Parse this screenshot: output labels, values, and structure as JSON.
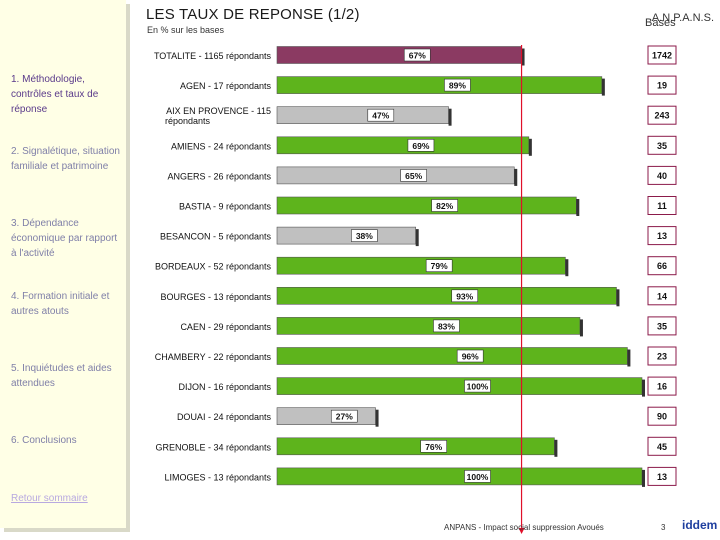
{
  "header": {
    "title": "LES TAUX DE REPONSE (1/2)",
    "subtitle": "En % sur les bases",
    "brand": "A.N.P.A.N.S.",
    "bases_label": "Bases"
  },
  "sidebar": {
    "items": [
      {
        "label": "1. Méthodologie, contrôles et taux de réponse"
      },
      {
        "label": "2. Signalétique, situation familiale et patrimoine"
      },
      {
        "label": "3. Dépendance économique par rapport à l'activité"
      },
      {
        "label": "4. Formation initiale et autres atouts"
      },
      {
        "label": "5. Inquiétudes et aides attendues"
      },
      {
        "label": "6. Conclusions"
      }
    ],
    "back_link": "Retour sommaire"
  },
  "footer": {
    "text": "ANPANS - Impact social suppression Avoués",
    "page": "3",
    "logo": "iddem"
  },
  "colors": {
    "total": "#8b3a62",
    "above": "#5eb41c",
    "below": "#c0c0c0",
    "reference_line": "#e0102a",
    "base_box_border": "#8b1a4a"
  },
  "chart_data": {
    "type": "bar",
    "orientation": "horizontal",
    "title": "LES TAUX DE REPONSE (1/2)",
    "unit": "%",
    "xlim": [
      0,
      100
    ],
    "reference_value": 67,
    "categories": [
      "TOTALITE - 1165 répondants",
      "AGEN - 17 répondants",
      "AIX EN PROVENCE - 115 répondants",
      "AMIENS - 24 répondants",
      "ANGERS - 26 répondants",
      "BASTIA - 9 répondants",
      "BESANCON - 5 répondants",
      "BORDEAUX - 52 répondants",
      "BOURGES - 13 répondants",
      "CAEN - 29 répondants",
      "CHAMBERY - 22 répondants",
      "DIJON - 16 répondants",
      "DOUAI - 24 répondants",
      "GRENOBLE - 34 répondants",
      "LIMOGES - 13 répondants"
    ],
    "values": [
      67,
      89,
      47,
      69,
      65,
      82,
      38,
      79,
      93,
      83,
      96,
      100,
      27,
      76,
      100
    ],
    "value_labels": [
      "67%",
      "89%",
      "47%",
      "69%",
      "65%",
      "82%",
      "38%",
      "79%",
      "93%",
      "83%",
      "96%",
      "100%",
      "27%",
      "76%",
      "100%"
    ],
    "bases": [
      "1742",
      "19",
      "243",
      "35",
      "40",
      "11",
      "13",
      "66",
      "14",
      "35",
      "23",
      "16",
      "90",
      "45",
      "13"
    ],
    "series_kind": [
      "total",
      "above",
      "below",
      "above",
      "below",
      "above",
      "below",
      "above",
      "above",
      "above",
      "above",
      "above",
      "below",
      "above",
      "above"
    ]
  }
}
